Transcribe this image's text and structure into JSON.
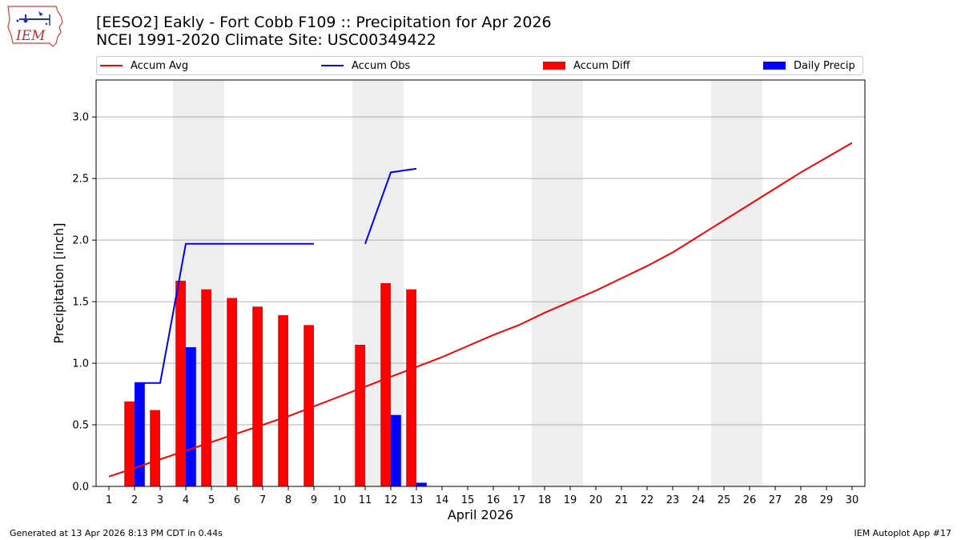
{
  "header": {
    "title_line1": "[EESO2] Eakly - Fort Cobb F109 :: Precipitation for Apr 2026",
    "title_line2": "NCEI 1991-2020 Climate Site: USC00349422",
    "logo_text": "IEM",
    "logo_icon": "iem-iowa-logo-icon"
  },
  "footer": {
    "left": "Generated at 13 Apr 2026 8:13 PM CDT in 0.44s",
    "right": "IEM Autoplot App #17"
  },
  "colors": {
    "avg": "#ff0000",
    "obs": "#0000ff",
    "diff": "#ff0000",
    "daily": "#0000ff",
    "weekend": "#eeeeee",
    "grid": "#b0b0b0"
  },
  "chart_data": {
    "type": "bar",
    "xlabel": "April 2026",
    "ylabel": "Precipitation [inch]",
    "xlim": [
      0.5,
      30.5
    ],
    "ylim": [
      0,
      3.3
    ],
    "yticks": [
      0.0,
      0.5,
      1.0,
      1.5,
      2.0,
      2.5,
      3.0
    ],
    "ytick_labels": [
      "0.0",
      "0.5",
      "1.0",
      "1.5",
      "2.0",
      "2.5",
      "3.0"
    ],
    "days": [
      1,
      2,
      3,
      4,
      5,
      6,
      7,
      8,
      9,
      10,
      11,
      12,
      13,
      14,
      15,
      16,
      17,
      18,
      19,
      20,
      21,
      22,
      23,
      24,
      25,
      26,
      27,
      28,
      29,
      30
    ],
    "grid": "horizontal",
    "legend_position": "top",
    "weekend_shading": [
      [
        4,
        5
      ],
      [
        11,
        12
      ],
      [
        18,
        19
      ],
      [
        25,
        26
      ]
    ],
    "legend": [
      {
        "label": "Accum Avg",
        "kind": "line",
        "color": "#ff0000"
      },
      {
        "label": "Accum Obs",
        "kind": "line",
        "color": "#0000ff"
      },
      {
        "label": "Accum Diff",
        "kind": "bar",
        "color": "#ff0000"
      },
      {
        "label": "Daily Precip",
        "kind": "bar",
        "color": "#0000ff"
      }
    ],
    "series": [
      {
        "name": "Accum Avg",
        "kind": "line",
        "x": [
          1,
          2,
          3,
          4,
          5,
          6,
          7,
          8,
          9,
          10,
          11,
          12,
          13,
          14,
          15,
          16,
          17,
          18,
          19,
          20,
          21,
          22,
          23,
          24,
          25,
          26,
          27,
          28,
          29,
          30
        ],
        "values": [
          0.08,
          0.15,
          0.22,
          0.29,
          0.36,
          0.43,
          0.5,
          0.57,
          0.65,
          0.73,
          0.81,
          0.89,
          0.97,
          1.05,
          1.14,
          1.23,
          1.31,
          1.41,
          1.5,
          1.59,
          1.69,
          1.79,
          1.9,
          2.03,
          2.16,
          2.29,
          2.42,
          2.55,
          2.67,
          2.79
        ]
      },
      {
        "name": "Accum Obs",
        "kind": "line",
        "segments": [
          {
            "x": [
              2,
              3,
              4,
              5,
              6,
              7,
              8,
              9
            ],
            "values": [
              0.84,
              0.84,
              1.97,
              1.97,
              1.97,
              1.97,
              1.97,
              1.97
            ]
          },
          {
            "x": [
              11,
              12,
              13
            ],
            "values": [
              1.97,
              2.55,
              2.58
            ]
          }
        ]
      },
      {
        "name": "Accum Diff",
        "kind": "bar",
        "x": [
          2,
          3,
          4,
          5,
          6,
          7,
          8,
          9,
          11,
          12,
          13
        ],
        "values": [
          0.69,
          0.62,
          1.67,
          1.6,
          1.53,
          1.46,
          1.39,
          1.31,
          1.15,
          1.65,
          1.6
        ]
      },
      {
        "name": "Daily Precip",
        "kind": "bar",
        "x": [
          2,
          4,
          12,
          13
        ],
        "values": [
          0.84,
          1.13,
          0.58,
          0.03
        ]
      }
    ]
  }
}
